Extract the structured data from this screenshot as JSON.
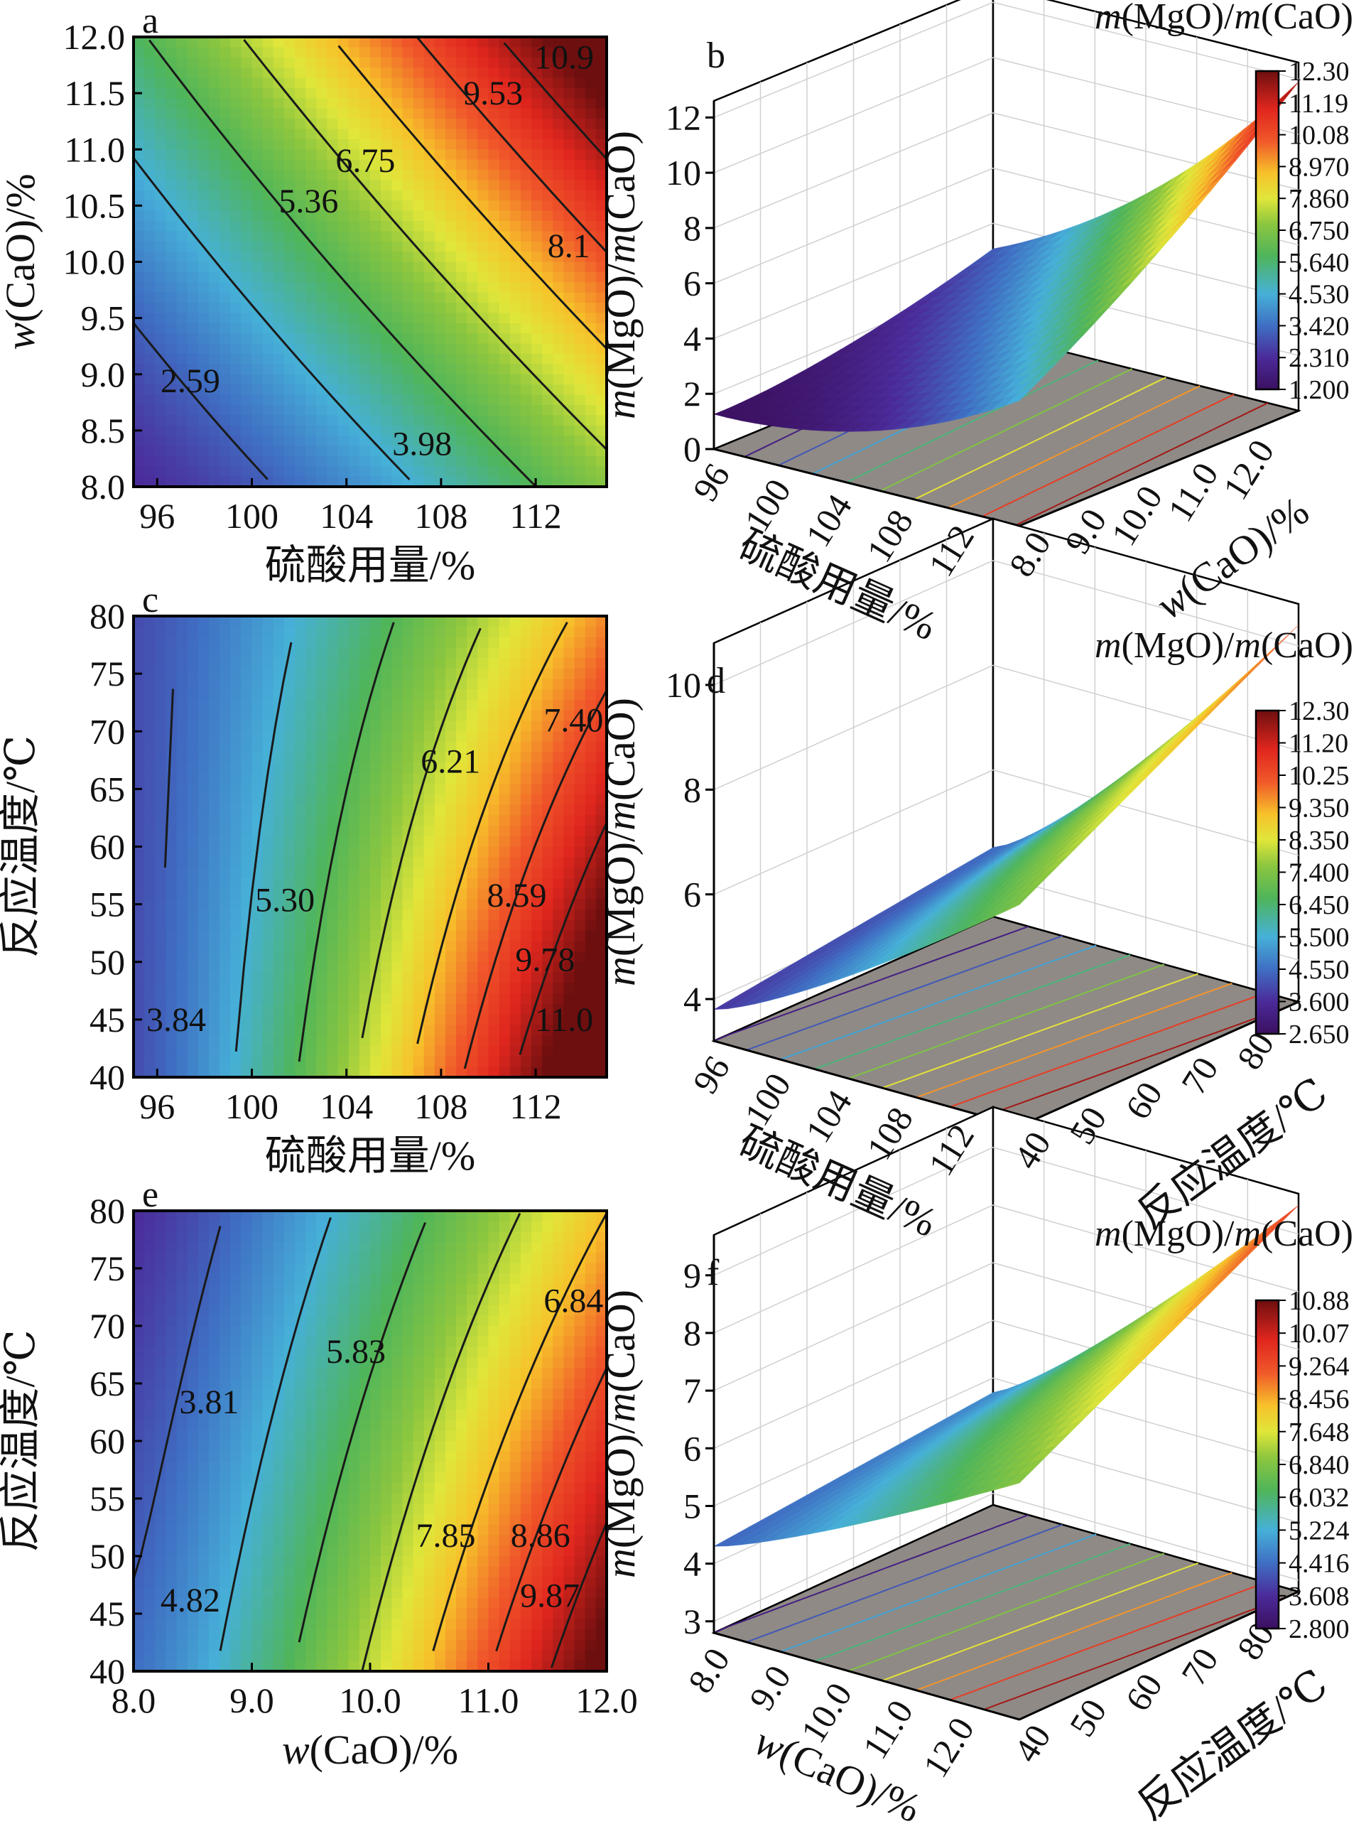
{
  "chart_data": [
    {
      "type": "heatmap",
      "panel": "a",
      "x": {
        "label": "硫酸用量/%",
        "ticks": [
          "96",
          "100",
          "104",
          "108",
          "112"
        ],
        "range": [
          95,
          115
        ]
      },
      "y": {
        "label": "w(CaO)/%",
        "ticks": [
          "8.0",
          "8.5",
          "9.0",
          "9.5",
          "10.0",
          "10.5",
          "11.0",
          "11.5",
          "12.0"
        ],
        "range": [
          8.0,
          12.0
        ]
      },
      "contour_labels": [
        "2.59",
        "3.98",
        "5.36",
        "6.75",
        "8.1",
        "9.53",
        "10.9"
      ],
      "z_range": [
        1.2,
        12.3
      ]
    },
    {
      "type": "surface3d",
      "panel": "b",
      "title": "m(MgO)/m(CaO)",
      "zlabel": "m(MgO)/m(CaO)",
      "zticks": [
        "0",
        "2",
        "4",
        "6",
        "8",
        "10",
        "12"
      ],
      "xlabel": "硫酸用量/%",
      "xticks": [
        "96",
        "100",
        "104",
        "108",
        "112"
      ],
      "ylabel": "w(CaO)/%",
      "yticks": [
        "8.0",
        "9.0",
        "10.0",
        "11.0",
        "12.0"
      ],
      "colorbar": [
        "12.30",
        "11.19",
        "10.08",
        "8.970",
        "7.860",
        "6.750",
        "5.640",
        "4.530",
        "3.420",
        "2.310",
        "1.200"
      ]
    },
    {
      "type": "heatmap",
      "panel": "c",
      "x": {
        "label": "硫酸用量/%",
        "ticks": [
          "96",
          "100",
          "104",
          "108",
          "112"
        ],
        "range": [
          95,
          115
        ]
      },
      "y": {
        "label": "反应温度/℃",
        "ticks": [
          "40",
          "45",
          "50",
          "55",
          "60",
          "65",
          "70",
          "75",
          "80"
        ],
        "range": [
          40,
          80
        ]
      },
      "contour_labels": [
        "3.84",
        "5.30",
        "6.21",
        "7.40",
        "8.59",
        "9.78",
        "11.0"
      ],
      "z_range": [
        2.65,
        12.3
      ]
    },
    {
      "type": "surface3d",
      "panel": "d",
      "title": "m(MgO)/m(CaO)",
      "zlabel": "m(MgO)/m(CaO)",
      "zticks": [
        "4",
        "6",
        "8",
        "10"
      ],
      "xlabel": "硫酸用量/%",
      "xticks": [
        "96",
        "100",
        "104",
        "108",
        "112"
      ],
      "ylabel": "反应温度/℃",
      "yticks": [
        "40",
        "50",
        "60",
        "70",
        "80"
      ],
      "colorbar": [
        "12.30",
        "11.20",
        "10.25",
        "9.350",
        "8.350",
        "7.400",
        "6.450",
        "5.500",
        "4.550",
        "3.600",
        "2.650"
      ]
    },
    {
      "type": "heatmap",
      "panel": "e",
      "x": {
        "label": "w(CaO)/%",
        "ticks": [
          "8.0",
          "9.0",
          "10.0",
          "11.0",
          "12.0"
        ],
        "range": [
          8.0,
          12.0
        ]
      },
      "y": {
        "label": "反应温度/℃",
        "ticks": [
          "40",
          "45",
          "50",
          "55",
          "60",
          "65",
          "70",
          "75",
          "80"
        ],
        "range": [
          40,
          80
        ]
      },
      "contour_labels": [
        "3.81",
        "4.82",
        "5.83",
        "6.84",
        "7.85",
        "8.86",
        "9.87"
      ],
      "z_range": [
        2.8,
        10.88
      ]
    },
    {
      "type": "surface3d",
      "panel": "f",
      "title": "m(MgO)/m(CaO)",
      "zlabel": "m(MgO)/m(CaO)",
      "zticks": [
        "3",
        "4",
        "5",
        "6",
        "7",
        "8",
        "9"
      ],
      "xlabel": "w(CaO)/%",
      "xticks": [
        "8.0",
        "9.0",
        "10.0",
        "11.0",
        "12.0"
      ],
      "ylabel": "反应温度/℃",
      "yticks": [
        "40",
        "50",
        "60",
        "70",
        "80"
      ],
      "colorbar": [
        "10.88",
        "10.07",
        "9.264",
        "8.456",
        "7.648",
        "6.840",
        "6.032",
        "5.224",
        "4.416",
        "3.608",
        "2.800"
      ]
    }
  ]
}
